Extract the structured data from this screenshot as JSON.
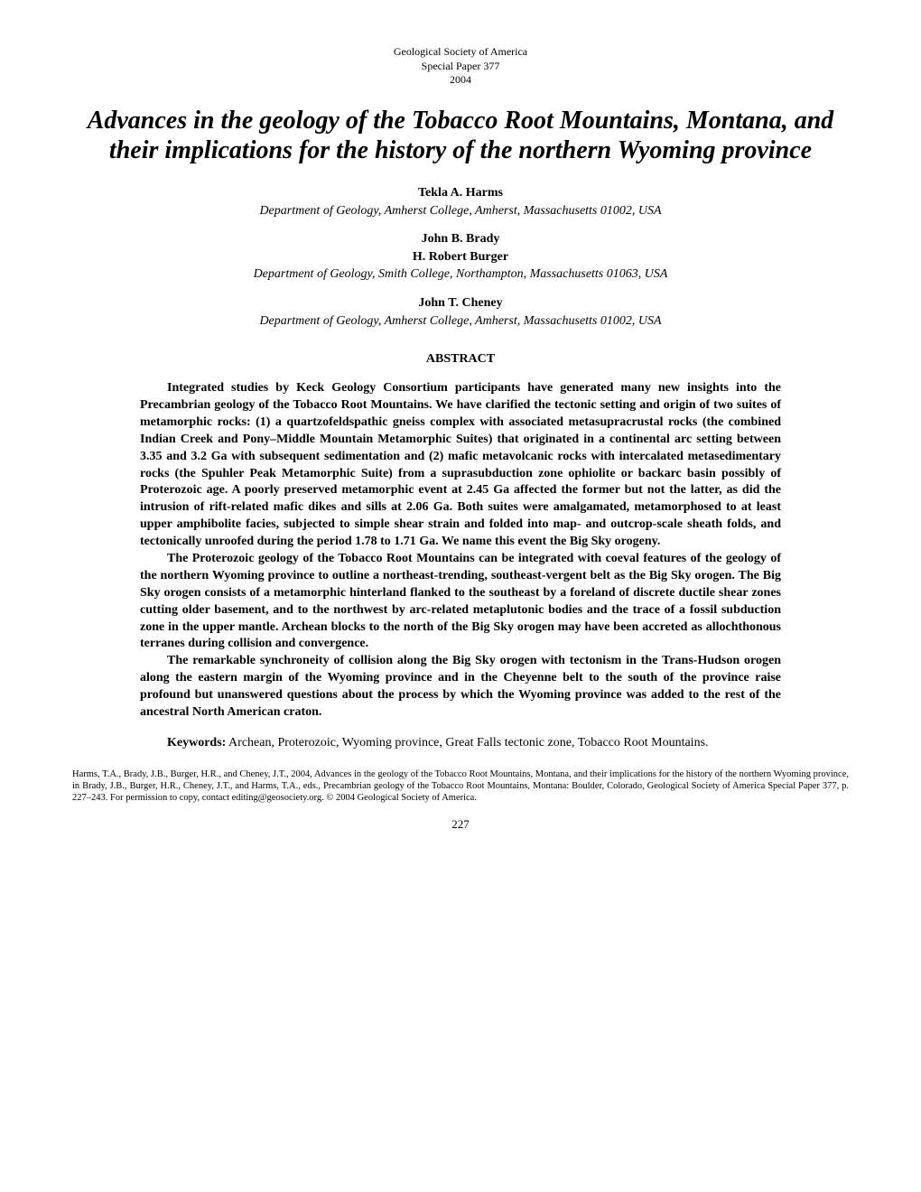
{
  "pub_info": {
    "line1": "Geological Society of America",
    "line2": "Special Paper 377",
    "line3": "2004"
  },
  "title": "Advances in the geology of the Tobacco Root Mountains, Montana, and their implications for the history of the northern Wyoming province",
  "author_blocks": [
    {
      "names": [
        "Tekla A. Harms"
      ],
      "affiliation": "Department of Geology, Amherst College, Amherst, Massachusetts 01002, USA"
    },
    {
      "names": [
        "John B. Brady",
        "H. Robert Burger"
      ],
      "affiliation": "Department of Geology, Smith College, Northampton, Massachusetts 01063, USA"
    },
    {
      "names": [
        "John T. Cheney"
      ],
      "affiliation": "Department of Geology, Amherst College, Amherst, Massachusetts 01002, USA"
    }
  ],
  "abstract_heading": "ABSTRACT",
  "abstract_paragraphs": [
    "Integrated studies by Keck Geology Consortium participants have generated many new insights into the Precambrian geology of the Tobacco Root Mountains. We have clarified the tectonic setting and origin of two suites of metamorphic rocks: (1) a quartzofeldspathic gneiss complex with associated metasupracrustal rocks (the combined Indian Creek and Pony–Middle Mountain Metamorphic Suites) that originated in a continental arc setting between 3.35 and 3.2 Ga with subsequent sedimentation and (2) mafic metavolcanic rocks with intercalated metasedimentary rocks (the Spuhler Peak Metamorphic Suite) from a suprasubduction zone ophiolite or backarc basin possibly of Proterozoic age. A poorly preserved metamorphic event at 2.45 Ga affected the former but not the latter, as did the intrusion of rift-related mafic dikes and sills at 2.06 Ga. Both suites were amalgamated, metamorphosed to at least upper amphibolite facies, subjected to simple shear strain and folded into map- and outcrop-scale sheath folds, and tectonically unroofed during the period 1.78 to 1.71 Ga. We name this event the Big Sky orogeny.",
    "The Proterozoic geology of the Tobacco Root Mountains can be integrated with coeval features of the geology of the northern Wyoming province to outline a northeast-trending, southeast-vergent belt as the Big Sky orogen. The Big Sky orogen consists of a metamorphic hinterland flanked to the southeast by a foreland of discrete ductile shear zones cutting older basement, and to the northwest by arc-related metaplutonic bodies and the trace of a fossil subduction zone in the upper mantle. Archean blocks to the north of the Big Sky orogen may have been accreted as allochthonous terranes during collision and convergence.",
    "The remarkable synchroneity of collision along the Big Sky orogen with tectonism in the Trans-Hudson orogen along the eastern margin of the Wyoming province and in the Cheyenne belt to the south of the province raise profound but unanswered questions about the process by which the Wyoming province was added to the rest of the ancestral North American craton."
  ],
  "keywords_label": "Keywords:",
  "keywords_text": " Archean, Proterozoic, Wyoming province, Great Falls tectonic zone, Tobacco Root Mountains.",
  "citation": "Harms, T.A., Brady, J.B., Burger, H.R., and Cheney, J.T., 2004, Advances in the geology of the Tobacco Root Mountains, Montana, and their implications for the history of the northern Wyoming province, in Brady, J.B., Burger, H.R., Cheney, J.T., and Harms, T.A., eds., Precambrian geology of the Tobacco Root Mountains, Montana: Boulder, Colorado, Geological Society of America Special Paper 377, p. 227–243. For permission to copy, contact editing@geosociety.org. © 2004 Geological Society of America.",
  "page_number": "227"
}
